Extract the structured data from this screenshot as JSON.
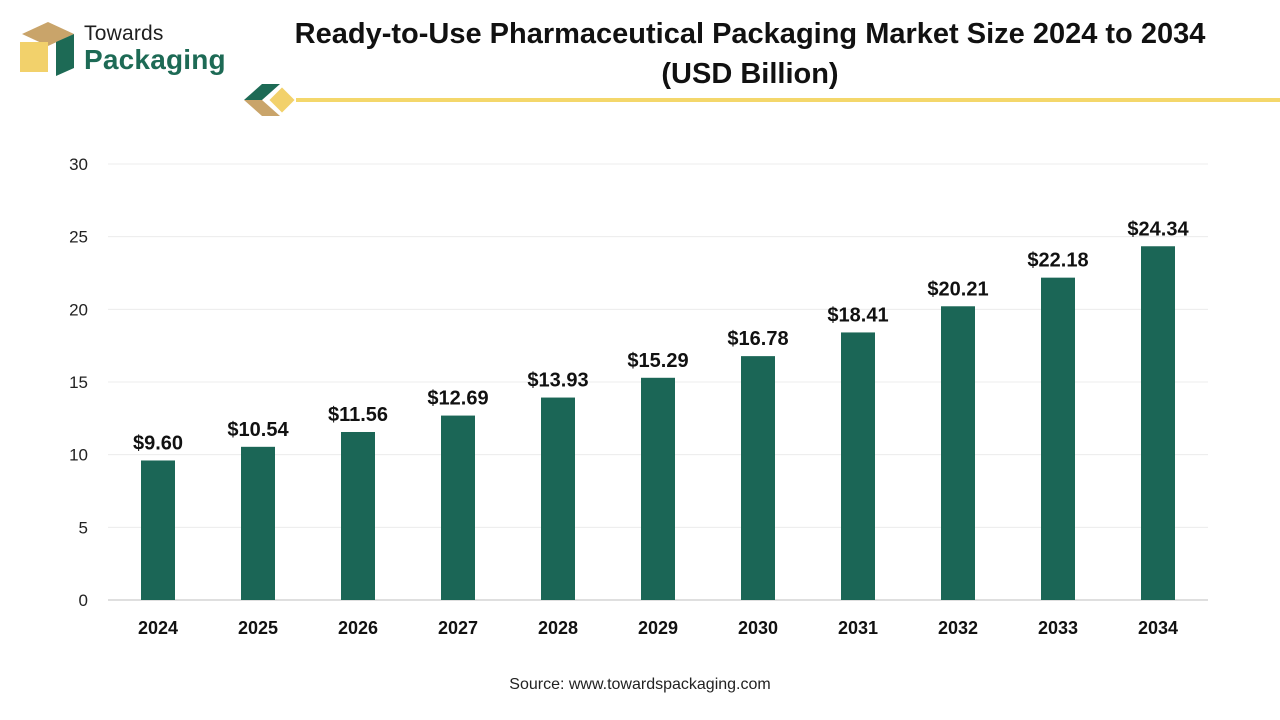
{
  "brand": {
    "name_top": "Towards",
    "name_bottom": "Packaging",
    "colors": {
      "green": "#1d6a55",
      "gold": "#f2d16b",
      "tan": "#c9a46a",
      "yellow_line": "#f4d76b"
    }
  },
  "title": {
    "line1": "Ready-to-Use Pharmaceutical Packaging Market Size 2024 to 2034",
    "line2": "(USD Billion)"
  },
  "chart_data": {
    "type": "bar",
    "title": "Ready-to-Use Pharmaceutical Packaging Market Size 2024 to 2034 (USD Billion)",
    "categories": [
      "2024",
      "2025",
      "2026",
      "2027",
      "2028",
      "2029",
      "2030",
      "2031",
      "2032",
      "2033",
      "2034"
    ],
    "values": [
      9.6,
      10.54,
      11.56,
      12.69,
      13.93,
      15.29,
      16.78,
      18.41,
      20.21,
      22.18,
      24.34
    ],
    "value_labels": [
      "$9.60",
      "$10.54",
      "$11.56",
      "$12.69",
      "$13.93",
      "$15.29",
      "$16.78",
      "$18.41",
      "$20.21",
      "$22.18",
      "$24.34"
    ],
    "yticks": [
      0,
      5,
      10,
      15,
      20,
      25,
      30
    ],
    "ylim": [
      0,
      30
    ],
    "xlabel": "",
    "ylabel": "",
    "bar_color": "#1b6656",
    "grid": true,
    "legend": "none"
  },
  "source": {
    "label": "Source:",
    "url": "www.towardspackaging.com"
  }
}
